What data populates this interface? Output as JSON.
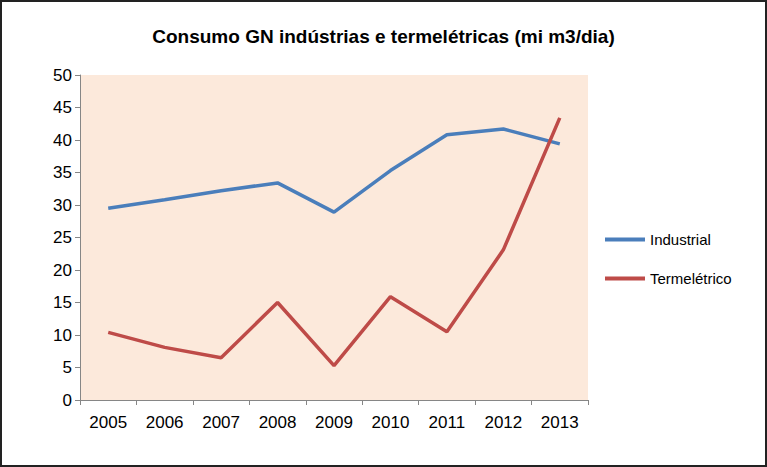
{
  "chart_data": {
    "type": "line",
    "title": "Consumo GN indústrias e termelétricas (mi m3/dia)",
    "categories": [
      "2005",
      "2006",
      "2007",
      "2008",
      "2009",
      "2010",
      "2011",
      "2012",
      "2013"
    ],
    "series": [
      {
        "name": "Industrial",
        "color": "#4a7ebb",
        "values": [
          29.5,
          30.8,
          32.2,
          33.4,
          28.9,
          35.3,
          40.8,
          41.7,
          39.4
        ]
      },
      {
        "name": "Termelétrico",
        "color": "#be4b48",
        "values": [
          10.4,
          8.1,
          6.5,
          15.0,
          5.3,
          15.9,
          10.5,
          23.1,
          43.4
        ]
      }
    ],
    "ylim": [
      0,
      50
    ],
    "yticks": [
      0,
      5,
      10,
      15,
      20,
      25,
      30,
      35,
      40,
      45,
      50
    ],
    "grid": false,
    "legend": "right"
  }
}
